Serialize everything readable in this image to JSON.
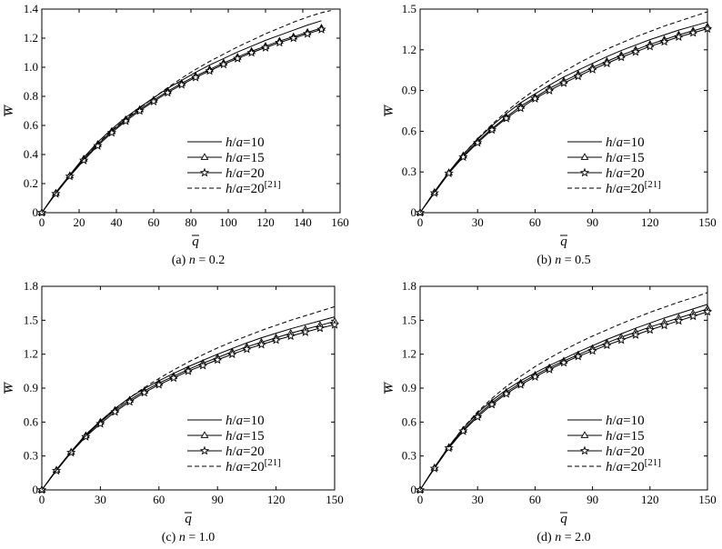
{
  "figure": {
    "panels": [
      {
        "caption": "(a) n = 0.2"
      },
      {
        "caption": "(b) n = 0.5"
      },
      {
        "caption": "(c) n = 1.0"
      },
      {
        "caption": "(d) n = 2.0"
      }
    ]
  },
  "chart_data": [
    {
      "type": "line",
      "caption": "(a) n = 0.2",
      "xlabel": "q̄",
      "ylabel": "W̄",
      "xlim": [
        0,
        160
      ],
      "ylim": [
        0,
        1.4
      ],
      "xticks": [
        "0",
        "20",
        "40",
        "60",
        "80",
        "100",
        "120",
        "140",
        "160"
      ],
      "yticks": [
        "0",
        "0.2",
        "0.4",
        "0.6",
        "0.8",
        "1.0",
        "1.2",
        "1.4"
      ],
      "legend_position": "lower-right",
      "series": [
        {
          "name": "h/a = 10",
          "style": "solid",
          "marker": "none",
          "x": [
            0,
            7.5,
            15,
            22.5,
            30,
            37.5,
            45,
            52.5,
            60,
            67.5,
            75,
            82.5,
            90,
            97.5,
            105,
            112.5,
            120,
            127.5,
            135,
            142.5,
            150
          ],
          "y": [
            0,
            0.14,
            0.26,
            0.38,
            0.485,
            0.575,
            0.655,
            0.725,
            0.79,
            0.855,
            0.91,
            0.965,
            1.015,
            1.06,
            1.105,
            1.145,
            1.185,
            1.22,
            1.255,
            1.29,
            1.32
          ]
        },
        {
          "name": "h/a = 15",
          "style": "solid",
          "marker": "triangle",
          "x": [
            0,
            7.5,
            15,
            22.5,
            30,
            37.5,
            45,
            52.5,
            60,
            67.5,
            75,
            82.5,
            90,
            97.5,
            105,
            112.5,
            120,
            127.5,
            135,
            142.5,
            150
          ],
          "y": [
            0,
            0.135,
            0.255,
            0.37,
            0.47,
            0.56,
            0.64,
            0.71,
            0.775,
            0.835,
            0.89,
            0.94,
            0.985,
            1.03,
            1.07,
            1.11,
            1.145,
            1.18,
            1.21,
            1.24,
            1.27
          ]
        },
        {
          "name": "h/a = 20",
          "style": "solid",
          "marker": "star",
          "x": [
            0,
            7.5,
            15,
            22.5,
            30,
            37.5,
            45,
            52.5,
            60,
            67.5,
            75,
            82.5,
            90,
            97.5,
            105,
            112.5,
            120,
            127.5,
            135,
            142.5,
            150
          ],
          "y": [
            0,
            0.13,
            0.25,
            0.36,
            0.46,
            0.55,
            0.63,
            0.7,
            0.765,
            0.825,
            0.88,
            0.93,
            0.975,
            1.02,
            1.06,
            1.1,
            1.135,
            1.17,
            1.2,
            1.23,
            1.26
          ]
        },
        {
          "name": "h/a = 20[21]",
          "style": "dashed",
          "marker": "none",
          "x": [
            0,
            7.5,
            15,
            22.5,
            30,
            37.5,
            45,
            52.5,
            60,
            67.5,
            75,
            82.5,
            90,
            97.5,
            105,
            112.5,
            120,
            127.5,
            135,
            142.5,
            150,
            155
          ],
          "y": [
            0,
            0.135,
            0.255,
            0.37,
            0.475,
            0.565,
            0.645,
            0.72,
            0.79,
            0.86,
            0.925,
            0.985,
            1.04,
            1.09,
            1.14,
            1.185,
            1.23,
            1.27,
            1.31,
            1.345,
            1.375,
            1.39
          ]
        }
      ]
    },
    {
      "type": "line",
      "caption": "(b) n = 0.5",
      "xlabel": "q̄",
      "ylabel": "W̄",
      "xlim": [
        0,
        150
      ],
      "ylim": [
        0,
        1.5
      ],
      "xticks": [
        "0",
        "30",
        "60",
        "90",
        "120",
        "150"
      ],
      "yticks": [
        "0",
        "0.3",
        "0.6",
        "0.9",
        "1.2",
        "1.5"
      ],
      "legend_position": "lower-right",
      "series": [
        {
          "name": "h/a = 10",
          "style": "solid",
          "marker": "none",
          "x": [
            0,
            7.5,
            15,
            22.5,
            30,
            37.5,
            45,
            52.5,
            60,
            67.5,
            75,
            82.5,
            90,
            97.5,
            105,
            112.5,
            120,
            127.5,
            135,
            142.5,
            150
          ],
          "y": [
            0,
            0.155,
            0.3,
            0.43,
            0.54,
            0.64,
            0.73,
            0.81,
            0.875,
            0.94,
            1.0,
            1.05,
            1.1,
            1.15,
            1.195,
            1.235,
            1.275,
            1.31,
            1.345,
            1.375,
            1.405
          ]
        },
        {
          "name": "h/a = 15",
          "style": "solid",
          "marker": "triangle",
          "x": [
            0,
            7.5,
            15,
            22.5,
            30,
            37.5,
            45,
            52.5,
            60,
            67.5,
            75,
            82.5,
            90,
            97.5,
            105,
            112.5,
            120,
            127.5,
            135,
            142.5,
            150
          ],
          "y": [
            0,
            0.15,
            0.295,
            0.42,
            0.525,
            0.62,
            0.705,
            0.785,
            0.85,
            0.915,
            0.97,
            1.02,
            1.07,
            1.115,
            1.16,
            1.2,
            1.24,
            1.275,
            1.31,
            1.34,
            1.37
          ]
        },
        {
          "name": "h/a = 20",
          "style": "solid",
          "marker": "star",
          "x": [
            0,
            7.5,
            15,
            22.5,
            30,
            37.5,
            45,
            52.5,
            60,
            67.5,
            75,
            82.5,
            90,
            97.5,
            105,
            112.5,
            120,
            127.5,
            135,
            142.5,
            150
          ],
          "y": [
            0,
            0.145,
            0.29,
            0.41,
            0.515,
            0.61,
            0.695,
            0.77,
            0.84,
            0.9,
            0.955,
            1.005,
            1.055,
            1.1,
            1.145,
            1.185,
            1.225,
            1.26,
            1.295,
            1.325,
            1.355
          ]
        },
        {
          "name": "h/a = 20[21]",
          "style": "dashed",
          "marker": "none",
          "x": [
            0,
            7.5,
            15,
            22.5,
            30,
            37.5,
            45,
            52.5,
            60,
            67.5,
            75,
            82.5,
            90,
            97.5,
            105,
            112.5,
            120,
            127.5,
            135,
            142.5,
            150
          ],
          "y": [
            0,
            0.155,
            0.3,
            0.43,
            0.545,
            0.65,
            0.745,
            0.83,
            0.905,
            0.975,
            1.04,
            1.1,
            1.155,
            1.205,
            1.25,
            1.295,
            1.335,
            1.375,
            1.41,
            1.445,
            1.48
          ]
        }
      ]
    },
    {
      "type": "line",
      "caption": "(c) n = 1.0",
      "xlabel": "q̄",
      "ylabel": "W̄",
      "xlim": [
        0,
        150
      ],
      "ylim": [
        0,
        1.8
      ],
      "xticks": [
        "0",
        "30",
        "60",
        "90",
        "120",
        "150"
      ],
      "yticks": [
        "0",
        "0.3",
        "0.6",
        "0.9",
        "1.2",
        "1.5",
        "1.8"
      ],
      "legend_position": "lower-right",
      "series": [
        {
          "name": "h/a = 10",
          "style": "solid",
          "marker": "none",
          "x": [
            0,
            7.5,
            15,
            22.5,
            30,
            37.5,
            45,
            52.5,
            60,
            67.5,
            75,
            82.5,
            90,
            97.5,
            105,
            112.5,
            120,
            127.5,
            135,
            142.5,
            150
          ],
          "y": [
            0,
            0.18,
            0.34,
            0.49,
            0.61,
            0.72,
            0.815,
            0.895,
            0.965,
            1.03,
            1.09,
            1.145,
            1.2,
            1.25,
            1.3,
            1.345,
            1.385,
            1.425,
            1.46,
            1.495,
            1.53
          ]
        },
        {
          "name": "h/a = 15",
          "style": "solid",
          "marker": "triangle",
          "x": [
            0,
            7.5,
            15,
            22.5,
            30,
            37.5,
            45,
            52.5,
            60,
            67.5,
            75,
            82.5,
            90,
            97.5,
            105,
            112.5,
            120,
            127.5,
            135,
            142.5,
            150
          ],
          "y": [
            0,
            0.175,
            0.335,
            0.48,
            0.6,
            0.705,
            0.795,
            0.875,
            0.945,
            1.005,
            1.065,
            1.12,
            1.17,
            1.22,
            1.265,
            1.305,
            1.345,
            1.385,
            1.42,
            1.455,
            1.49
          ]
        },
        {
          "name": "h/a = 20",
          "style": "solid",
          "marker": "star",
          "x": [
            0,
            7.5,
            15,
            22.5,
            30,
            37.5,
            45,
            52.5,
            60,
            67.5,
            75,
            82.5,
            90,
            97.5,
            105,
            112.5,
            120,
            127.5,
            135,
            142.5,
            150
          ],
          "y": [
            0,
            0.17,
            0.33,
            0.47,
            0.585,
            0.69,
            0.78,
            0.86,
            0.93,
            0.99,
            1.05,
            1.1,
            1.15,
            1.2,
            1.245,
            1.285,
            1.325,
            1.36,
            1.395,
            1.43,
            1.46
          ]
        },
        {
          "name": "h/a = 20[21]",
          "style": "dashed",
          "marker": "none",
          "x": [
            0,
            7.5,
            15,
            22.5,
            30,
            37.5,
            45,
            52.5,
            60,
            67.5,
            75,
            82.5,
            90,
            97.5,
            105,
            112.5,
            120,
            127.5,
            135,
            142.5,
            150
          ],
          "y": [
            0,
            0.175,
            0.335,
            0.48,
            0.605,
            0.715,
            0.815,
            0.905,
            0.985,
            1.06,
            1.13,
            1.195,
            1.255,
            1.31,
            1.36,
            1.41,
            1.455,
            1.5,
            1.54,
            1.58,
            1.62
          ]
        }
      ]
    },
    {
      "type": "line",
      "caption": "(d) n = 2.0",
      "xlabel": "q̄",
      "ylabel": "W̄",
      "xlim": [
        0,
        150
      ],
      "ylim": [
        0,
        1.8
      ],
      "xticks": [
        "0",
        "30",
        "60",
        "90",
        "120",
        "150"
      ],
      "yticks": [
        "0",
        "0.3",
        "0.6",
        "0.9",
        "1.2",
        "1.5",
        "1.8"
      ],
      "legend_position": "lower-right",
      "series": [
        {
          "name": "h/a = 10",
          "style": "solid",
          "marker": "none",
          "x": [
            0,
            7.5,
            15,
            22.5,
            30,
            37.5,
            45,
            52.5,
            60,
            67.5,
            75,
            82.5,
            90,
            97.5,
            105,
            112.5,
            120,
            127.5,
            135,
            142.5,
            150
          ],
          "y": [
            0,
            0.2,
            0.385,
            0.545,
            0.68,
            0.79,
            0.885,
            0.965,
            1.035,
            1.1,
            1.16,
            1.22,
            1.275,
            1.33,
            1.38,
            1.43,
            1.475,
            1.52,
            1.56,
            1.6,
            1.64
          ]
        },
        {
          "name": "h/a = 15",
          "style": "solid",
          "marker": "triangle",
          "x": [
            0,
            7.5,
            15,
            22.5,
            30,
            37.5,
            45,
            52.5,
            60,
            67.5,
            75,
            82.5,
            90,
            97.5,
            105,
            112.5,
            120,
            127.5,
            135,
            142.5,
            150
          ],
          "y": [
            0,
            0.195,
            0.375,
            0.53,
            0.66,
            0.77,
            0.865,
            0.945,
            1.015,
            1.08,
            1.14,
            1.195,
            1.25,
            1.3,
            1.35,
            1.395,
            1.44,
            1.48,
            1.52,
            1.56,
            1.6
          ]
        },
        {
          "name": "h/a = 20",
          "style": "solid",
          "marker": "star",
          "x": [
            0,
            7.5,
            15,
            22.5,
            30,
            37.5,
            45,
            52.5,
            60,
            67.5,
            75,
            82.5,
            90,
            97.5,
            105,
            112.5,
            120,
            127.5,
            135,
            142.5,
            150
          ],
          "y": [
            0,
            0.19,
            0.37,
            0.52,
            0.645,
            0.755,
            0.85,
            0.93,
            1.0,
            1.065,
            1.125,
            1.18,
            1.23,
            1.28,
            1.325,
            1.37,
            1.415,
            1.455,
            1.495,
            1.535,
            1.575
          ]
        },
        {
          "name": "h/a = 20[21]",
          "style": "dashed",
          "marker": "none",
          "x": [
            0,
            7.5,
            15,
            22.5,
            30,
            37.5,
            45,
            52.5,
            60,
            67.5,
            75,
            82.5,
            90,
            97.5,
            105,
            112.5,
            120,
            127.5,
            135,
            142.5,
            150
          ],
          "y": [
            0,
            0.2,
            0.385,
            0.55,
            0.69,
            0.81,
            0.915,
            1.005,
            1.09,
            1.165,
            1.235,
            1.3,
            1.36,
            1.415,
            1.47,
            1.52,
            1.57,
            1.615,
            1.66,
            1.7,
            1.745
          ]
        }
      ]
    }
  ]
}
